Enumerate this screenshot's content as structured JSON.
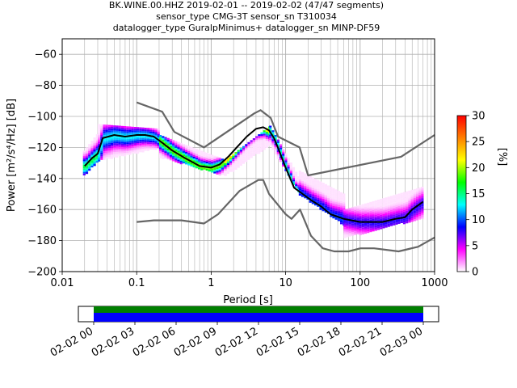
{
  "title_lines": [
    "BK.WINE.00.HHZ   2019-02-01 -- 2019-02-02  (47/47 segments)",
    "sensor_type CMG-3T sensor_sn T310034",
    "datalogger_type GuralpMinimus+ datalogger_sn MINP-DF59"
  ],
  "chart_data": {
    "type": "heatmap",
    "xlabel": "Period [s]",
    "ylabel": "Power [m²/s⁴/Hz] [dB]",
    "xscale": "log",
    "xlim": [
      0.01,
      1000
    ],
    "ylim": [
      -200,
      -50
    ],
    "x_ticks": [
      0.01,
      0.1,
      1,
      10,
      100,
      1000
    ],
    "x_tick_labels": [
      "0.01",
      "0.1",
      "1",
      "10",
      "100",
      "1000"
    ],
    "y_ticks": [
      -200,
      -180,
      -160,
      -140,
      -120,
      -100,
      -80,
      -60
    ],
    "y_tick_labels": [
      "−200",
      "−180",
      "−160",
      "−140",
      "−120",
      "−100",
      "−80",
      "−60"
    ],
    "grid": true,
    "colorbar": {
      "label": "[%]",
      "range": [
        0,
        30
      ],
      "ticks": [
        0,
        5,
        10,
        15,
        20,
        25,
        30
      ],
      "colors": [
        "#ffffff",
        "#ff00ff",
        "#0000ff",
        "#00ffff",
        "#00ff00",
        "#ffff00",
        "#ff7f00",
        "#ff0000"
      ]
    },
    "series": [
      {
        "role": "median",
        "color": "#000000",
        "x": [
          0.02,
          0.025,
          0.03,
          0.035,
          0.05,
          0.07,
          0.1,
          0.13,
          0.17,
          0.22,
          0.3,
          0.45,
          0.7,
          1,
          1.3,
          1.7,
          2.2,
          3,
          4,
          5,
          6,
          7,
          8,
          10,
          13,
          17,
          22,
          30,
          40,
          60,
          100,
          200,
          300,
          400,
          500,
          700
        ],
        "y": [
          -132,
          -127,
          -124,
          -114,
          -112,
          -113,
          -112,
          -112,
          -113,
          -117,
          -122,
          -127,
          -132,
          -133,
          -131,
          -126,
          -120,
          -113,
          -108,
          -107,
          -109,
          -114,
          -121,
          -133,
          -146,
          -150,
          -154,
          -158,
          -163,
          -166,
          -168,
          -168,
          -166,
          -165,
          -160,
          -155
        ]
      },
      {
        "role": "nhnm",
        "color": "#666666",
        "x": [
          0.1,
          0.22,
          0.32,
          0.8,
          3.8,
          4.6,
          6.3,
          7.9,
          15.4,
          20,
          354.8,
          1000
        ],
        "y": [
          -91,
          -97,
          -110,
          -120,
          -98,
          -96,
          -101,
          -113,
          -120,
          -138,
          -126,
          -112
        ]
      },
      {
        "role": "nlnm",
        "color": "#666666",
        "x": [
          0.1,
          0.17,
          0.4,
          0.8,
          1.24,
          2.4,
          4.3,
          5,
          6,
          10,
          12,
          15.6,
          21.9,
          31.6,
          45,
          70,
          101,
          154,
          328,
          600,
          1000
        ],
        "y": [
          -168,
          -167,
          -167,
          -169,
          -163,
          -148,
          -141,
          -141,
          -150,
          -163,
          -166,
          -160,
          -177,
          -185,
          -187,
          -187,
          -185,
          -185,
          -187,
          -184,
          -178
        ]
      }
    ],
    "heatmap_bands": [
      {
        "x0": 0.019,
        "x1": 0.03,
        "ylo": [
          -138,
          -128
        ],
        "yhi": [
          -122,
          -110
        ],
        "level": 10
      },
      {
        "x0": 0.03,
        "x1": 0.2,
        "ylo": [
          -128,
          -120
        ],
        "yhi": [
          -105,
          -108
        ],
        "level": 8
      },
      {
        "x0": 0.2,
        "x1": 1.5,
        "ylo": [
          -126,
          -138
        ],
        "yhi": [
          -112,
          -128
        ],
        "level": 12
      },
      {
        "x0": 1.5,
        "x1": 6,
        "ylo": [
          -138,
          -118
        ],
        "yhi": [
          -128,
          -106
        ],
        "level": 14
      },
      {
        "x0": 6,
        "x1": 15,
        "ylo": [
          -118,
          -150
        ],
        "yhi": [
          -106,
          -140
        ],
        "level": 9
      },
      {
        "x0": 15,
        "x1": 60,
        "ylo": [
          -150,
          -170
        ],
        "yhi": [
          -135,
          -150
        ],
        "level": 6
      },
      {
        "x0": 60,
        "x1": 700,
        "ylo": [
          -178,
          -165
        ],
        "yhi": [
          -160,
          -145
        ],
        "level": 5
      }
    ],
    "time_axis": {
      "tick_labels": [
        "02-02 00",
        "02-02 03",
        "02-02 06",
        "02-02 09",
        "02-02 12",
        "02-02 15",
        "02-02 18",
        "02-02 21",
        "02-03 00"
      ],
      "coverage_colors": [
        "#008000",
        "#0000ff"
      ]
    }
  }
}
